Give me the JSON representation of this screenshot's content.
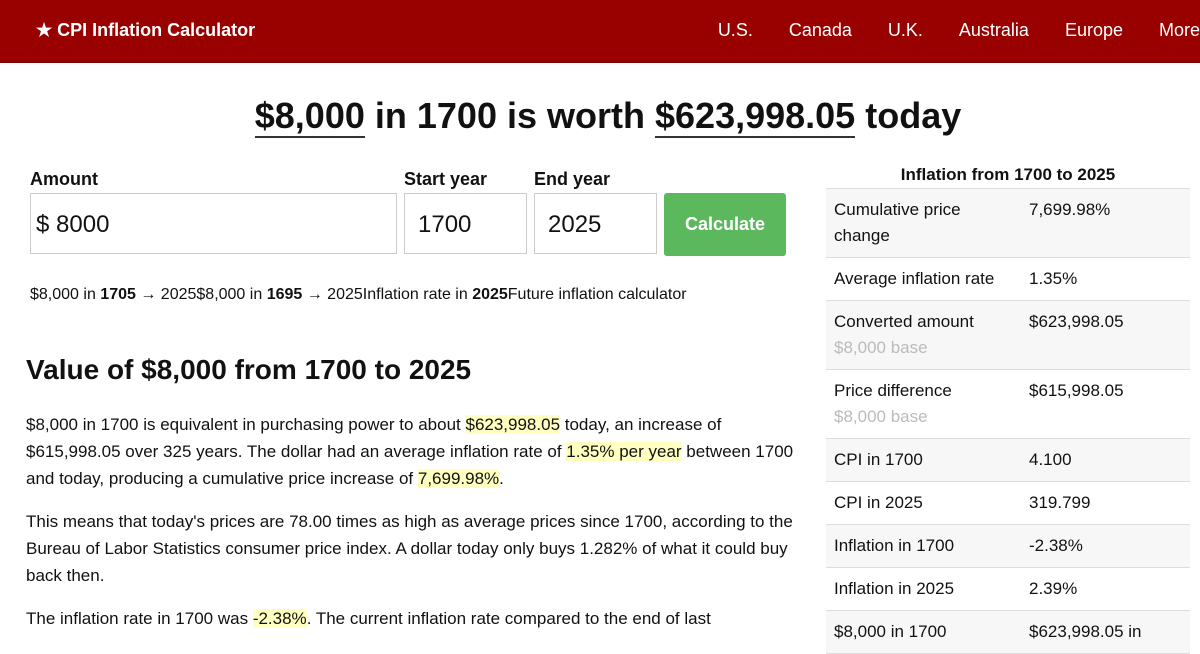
{
  "header": {
    "brand": "★ CPI Inflation Calculator",
    "nav": [
      "U.S.",
      "Canada",
      "U.K.",
      "Australia",
      "Europe",
      "More"
    ]
  },
  "headline": {
    "amount": "$8,000",
    "middle": "in 1700 is worth",
    "result": "$623,998.05",
    "end": "today"
  },
  "form": {
    "amount_label": "Amount",
    "currency": "$",
    "amount": "8000",
    "start_label": "Start year",
    "start": "1700",
    "end_label": "End year",
    "end": "2025",
    "button": "Calculate"
  },
  "chips": [
    {
      "pre": "$8,000 in",
      "bold": "1705",
      "post": "→ 2025"
    },
    {
      "pre": "$8,000 in",
      "bold": "1695",
      "post": "→ 2025"
    },
    {
      "pre": "Inflation rate in",
      "bold": "2025"
    },
    {
      "pre": "Future inflation calculator"
    }
  ],
  "section_title": "Value of $8,000 from 1700 to 2025",
  "paragraphs": [
    [
      "$8,000 in 1700 is equivalent in purchasing power to about ",
      {
        "highlight": "$623,998.05"
      },
      " today, an increase of $615,998.05 over 325 years. The dollar had an average inflation rate of ",
      {
        "highlight": "1.35% per year"
      },
      " between 1700 and today, producing a cumulative price increase of ",
      {
        "highlight": "7,699.98%"
      },
      "."
    ],
    [
      "This means that today's prices are 78.00 times as high as average prices since 1700, according to the Bureau of Labor Statistics consumer price index. A dollar today only buys 1.282% of what it could buy back then."
    ],
    [
      "The inflation rate in 1700 was ",
      {
        "highlight": "-2.38%"
      },
      ". The current inflation rate compared to the end of last"
    ]
  ],
  "sidebar": {
    "title": "Inflation from 1700 to 2025",
    "rows": [
      {
        "label": "Cumulative price change",
        "value": "7,699.98%"
      },
      {
        "label": "Average inflation rate",
        "value": "1.35%"
      },
      {
        "label": "Converted amount",
        "sub": "$8,000 base",
        "value": "$623,998.05"
      },
      {
        "label": "Price difference",
        "sub": "$8,000 base",
        "value": "$615,998.05"
      },
      {
        "label": "CPI in 1700",
        "value": "4.100"
      },
      {
        "label": "CPI in 2025",
        "value": "319.799"
      },
      {
        "label": "Inflation in 1700",
        "value": "-2.38%"
      },
      {
        "label": "Inflation in 2025",
        "value": "2.39%"
      },
      {
        "label": "$8,000 in 1700",
        "value": "$623,998.05 in"
      }
    ]
  }
}
